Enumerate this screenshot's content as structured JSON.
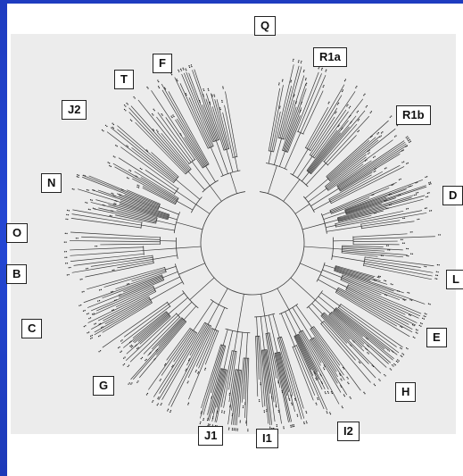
{
  "diagram": {
    "type": "circular-phylogenetic-tree",
    "colors": {
      "frame": "#1f3fc4",
      "slide": "#ffffff",
      "plot_background": "#ececec",
      "branch": "#3a3a3a",
      "label_border": "#222222"
    },
    "clade_labels": [
      {
        "id": "Q",
        "text": "Q"
      },
      {
        "id": "R1a",
        "text": "R1a"
      },
      {
        "id": "R1b",
        "text": "R1b"
      },
      {
        "id": "D",
        "text": "D"
      },
      {
        "id": "L",
        "text": "L"
      },
      {
        "id": "E",
        "text": "E"
      },
      {
        "id": "H",
        "text": "H"
      },
      {
        "id": "I2",
        "text": "I2"
      },
      {
        "id": "I1",
        "text": "I1"
      },
      {
        "id": "J1",
        "text": "J1"
      },
      {
        "id": "G",
        "text": "G"
      },
      {
        "id": "C",
        "text": "C"
      },
      {
        "id": "B",
        "text": "B"
      },
      {
        "id": "O",
        "text": "O"
      },
      {
        "id": "N",
        "text": "N"
      },
      {
        "id": "J2",
        "text": "J2"
      },
      {
        "id": "T",
        "text": "T"
      },
      {
        "id": "F",
        "text": "F"
      }
    ]
  }
}
